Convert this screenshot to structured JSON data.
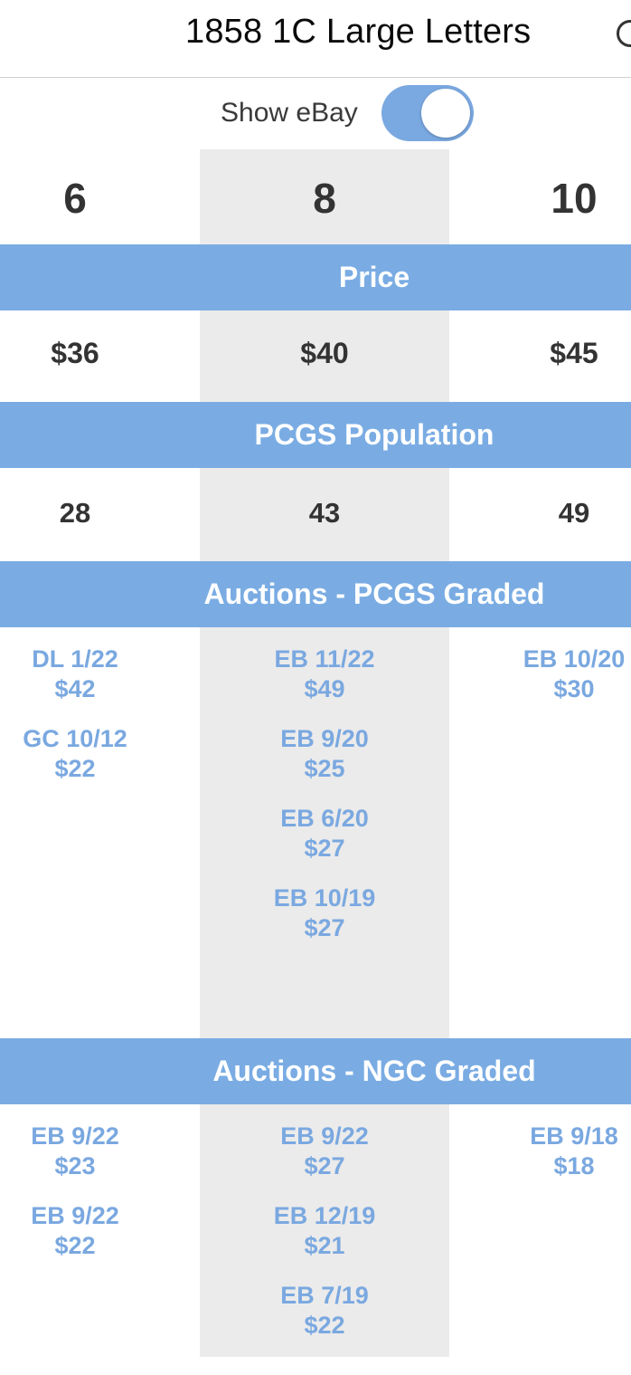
{
  "header": {
    "title": "1858 1C Large Letters"
  },
  "toggle": {
    "label": "Show eBay",
    "on": true
  },
  "grades": [
    "6",
    "8",
    "10"
  ],
  "sections": {
    "price": "Price",
    "population": "PCGS Population",
    "auctions_pcgs": "Auctions - PCGS Graded",
    "auctions_ngc": "Auctions - NGC Graded"
  },
  "prices": [
    "$36",
    "$40",
    "$45"
  ],
  "population": [
    "28",
    "43",
    "49"
  ],
  "auctions_pcgs": [
    [
      {
        "date": "DL 1/22",
        "price": "$42"
      },
      {
        "date": "GC 10/12",
        "price": "$22"
      }
    ],
    [
      {
        "date": "EB 11/22",
        "price": "$49"
      },
      {
        "date": "EB 9/20",
        "price": "$25"
      },
      {
        "date": "EB 6/20",
        "price": "$27"
      },
      {
        "date": "EB 10/19",
        "price": "$27"
      }
    ],
    [
      {
        "date": "EB 10/20",
        "price": "$30"
      }
    ]
  ],
  "auctions_ngc": [
    [
      {
        "date": "EB 9/22",
        "price": "$23"
      },
      {
        "date": "EB 9/22",
        "price": "$22"
      }
    ],
    [
      {
        "date": "EB 9/22",
        "price": "$27"
      },
      {
        "date": "EB 12/19",
        "price": "$21"
      },
      {
        "date": "EB 7/19",
        "price": "$22"
      }
    ],
    [
      {
        "date": "EB 9/18",
        "price": "$18"
      }
    ]
  ],
  "colors": {
    "accent": "#7aace3",
    "link": "#7aa8e0",
    "middle_column": "#ebebeb"
  }
}
